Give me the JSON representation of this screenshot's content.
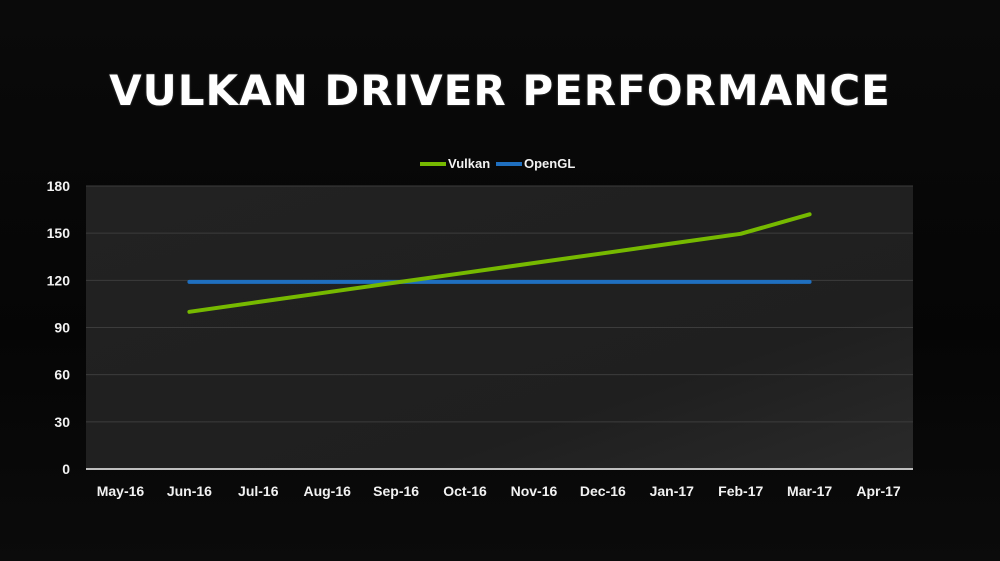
{
  "slide": {
    "title": "VULKAN DRIVER PERFORMANCE"
  },
  "chart_data": {
    "type": "line",
    "title": "",
    "xlabel": "",
    "ylabel": "",
    "categories": [
      "May-16",
      "Jun-16",
      "Jul-16",
      "Aug-16",
      "Sep-16",
      "Oct-16",
      "Nov-16",
      "Dec-16",
      "Jan-17",
      "Feb-17",
      "Mar-17",
      "Apr-17"
    ],
    "series": [
      {
        "name": "Vulkan",
        "color": "#76b900",
        "values": [
          null,
          100,
          106.2,
          112.4,
          118.6,
          124.8,
          131,
          137.2,
          143.4,
          149.6,
          162,
          null
        ]
      },
      {
        "name": "OpenGL",
        "color": "#1f6fbf",
        "values": [
          null,
          119,
          119,
          119,
          119,
          119,
          119,
          119,
          119,
          119,
          119,
          null
        ]
      }
    ],
    "ylim": [
      0,
      180
    ],
    "yticks": [
      "0",
      "30",
      "60",
      "90",
      "120",
      "150",
      "180"
    ],
    "grid": true,
    "legend": "top-center",
    "plot_background": "#222222"
  }
}
